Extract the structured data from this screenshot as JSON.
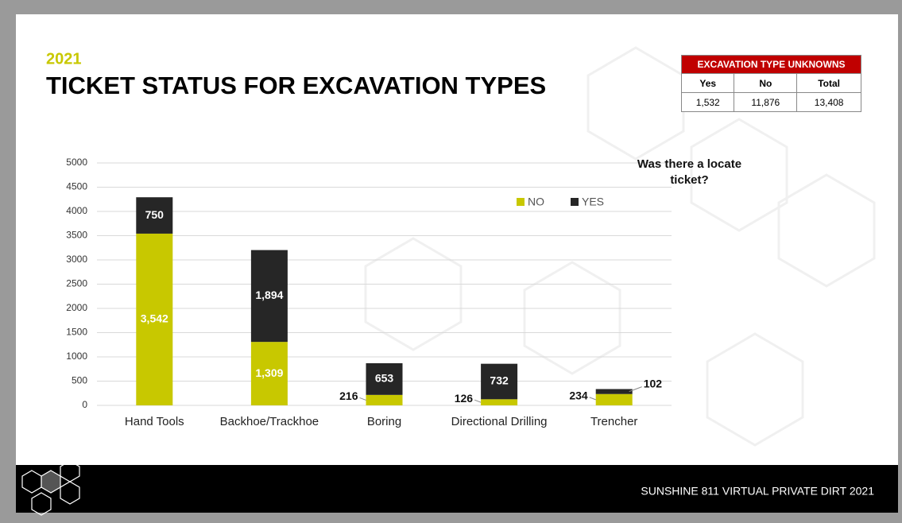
{
  "subtitle": "2021",
  "title": "TICKET STATUS FOR EXCAVATION TYPES",
  "table": {
    "title": "EXCAVATION TYPE UNKNOWNS",
    "columns": [
      "Yes",
      "No",
      "Total"
    ],
    "rows": [
      [
        "1,532",
        "11,876",
        "13,408"
      ]
    ]
  },
  "footer": "SUNSHINE 811 VIRTUAL PRIVATE DIRT 2021",
  "chart_data": {
    "type": "stacked_bar",
    "legend_title": "Was there a locate ticket?",
    "categories": [
      "Hand Tools",
      "Backhoe/Trackhoe",
      "Boring",
      "Directional Drilling",
      "Trencher"
    ],
    "series": [
      {
        "name": "NO",
        "color": "#c8c800",
        "values": [
          3542,
          1309,
          216,
          126,
          234
        ],
        "value_labels": [
          "3,542",
          "1,309",
          "216",
          "126",
          "234"
        ]
      },
      {
        "name": "YES",
        "color": "#262626",
        "values": [
          750,
          1894,
          653,
          732,
          102
        ],
        "value_labels": [
          "750",
          "1,894",
          "653",
          "732",
          "102"
        ]
      }
    ],
    "ylim": [
      0,
      5000
    ],
    "yticks": [
      0,
      500,
      1000,
      1500,
      2000,
      2500,
      3000,
      3500,
      4000,
      4500,
      5000
    ],
    "grid": true
  }
}
